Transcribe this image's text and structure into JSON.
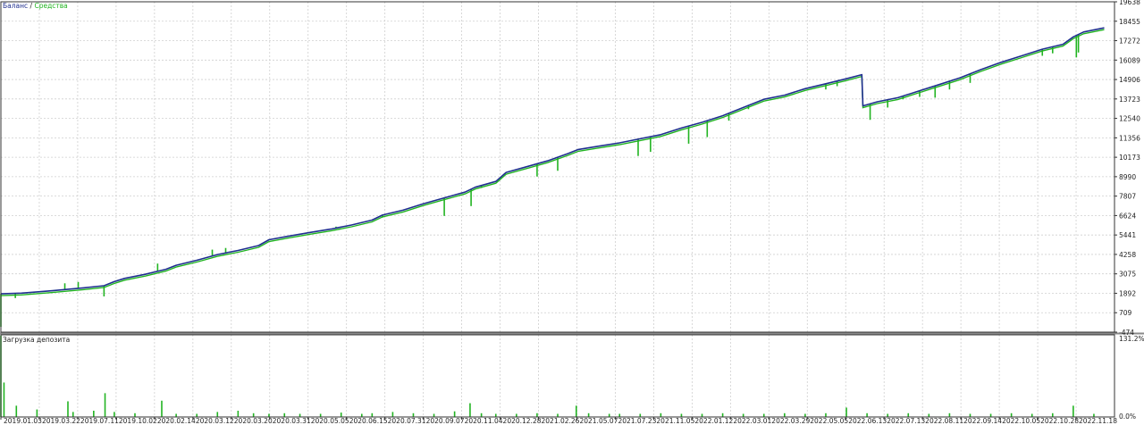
{
  "chart_data": {
    "type": "line",
    "colors": {
      "balance": "#1f2f8f",
      "equity": "#22b422",
      "grid": "#cfcfcf",
      "frame": "#333333",
      "separator": "#8a8a8a"
    },
    "legend": {
      "balance_label": "Баланс",
      "separator": " / ",
      "equity_label": "Средства"
    },
    "main": {
      "ylim": [
        -474,
        19638
      ],
      "y_ticks": [
        "19638",
        "18455",
        "17272",
        "16089",
        "14906",
        "13723",
        "12540",
        "11356",
        "10173",
        "8990",
        "7807",
        "6624",
        "5441",
        "4258",
        "3075",
        "1892",
        "709",
        "-474"
      ],
      "balance_points": [
        [
          0,
          1860
        ],
        [
          2,
          1900
        ],
        [
          5,
          2050
        ],
        [
          8,
          2220
        ],
        [
          10,
          2350
        ],
        [
          11,
          2600
        ],
        [
          12,
          2800
        ],
        [
          14,
          3050
        ],
        [
          16,
          3350
        ],
        [
          17,
          3600
        ],
        [
          19,
          3900
        ],
        [
          21,
          4250
        ],
        [
          23,
          4500
        ],
        [
          25,
          4800
        ],
        [
          26,
          5150
        ],
        [
          28,
          5380
        ],
        [
          30,
          5600
        ],
        [
          32,
          5800
        ],
        [
          34,
          6050
        ],
        [
          36,
          6350
        ],
        [
          37,
          6650
        ],
        [
          39,
          6950
        ],
        [
          41,
          7350
        ],
        [
          43,
          7700
        ],
        [
          45,
          8050
        ],
        [
          46,
          8350
        ],
        [
          48,
          8700
        ],
        [
          49,
          9250
        ],
        [
          51,
          9600
        ],
        [
          53,
          9950
        ],
        [
          55,
          10400
        ],
        [
          56,
          10650
        ],
        [
          58,
          10850
        ],
        [
          60,
          11050
        ],
        [
          62,
          11300
        ],
        [
          64,
          11550
        ],
        [
          66,
          11950
        ],
        [
          68,
          12300
        ],
        [
          70,
          12700
        ],
        [
          72,
          13200
        ],
        [
          74,
          13700
        ],
        [
          76,
          13950
        ],
        [
          78,
          14350
        ],
        [
          80,
          14650
        ],
        [
          82,
          14950
        ],
        [
          83.5,
          15200
        ],
        [
          83.6,
          13300
        ],
        [
          85,
          13550
        ],
        [
          87,
          13800
        ],
        [
          89,
          14200
        ],
        [
          91,
          14600
        ],
        [
          93,
          15000
        ],
        [
          95,
          15500
        ],
        [
          97,
          15950
        ],
        [
          99,
          16350
        ],
        [
          101,
          16750
        ],
        [
          103,
          17050
        ],
        [
          104,
          17500
        ],
        [
          105,
          17800
        ],
        [
          107,
          18050
        ]
      ],
      "equity_spikes": [
        [
          0,
          -150
        ],
        [
          1.4,
          1600
        ],
        [
          6.2,
          2500
        ],
        [
          7.5,
          2580
        ],
        [
          10,
          1700
        ],
        [
          15.2,
          3700
        ],
        [
          20.5,
          4550
        ],
        [
          21.8,
          4650
        ],
        [
          30.4,
          5600
        ],
        [
          32.5,
          5950
        ],
        [
          37,
          6500
        ],
        [
          43,
          6600
        ],
        [
          45.6,
          7200
        ],
        [
          46.6,
          8300
        ],
        [
          52,
          9000
        ],
        [
          54,
          9350
        ],
        [
          61.8,
          10250
        ],
        [
          63,
          10500
        ],
        [
          66.7,
          11000
        ],
        [
          68.5,
          11400
        ],
        [
          70.6,
          12400
        ],
        [
          72.5,
          13100
        ],
        [
          80,
          14300
        ],
        [
          81.1,
          14500
        ],
        [
          84.3,
          12450
        ],
        [
          86,
          13200
        ],
        [
          87.5,
          13700
        ],
        [
          89.1,
          13850
        ],
        [
          90.6,
          13800
        ],
        [
          92,
          14300
        ],
        [
          94,
          14700
        ],
        [
          101,
          16350
        ],
        [
          102,
          16500
        ],
        [
          104.3,
          16250
        ],
        [
          104.5,
          16550
        ]
      ]
    },
    "sub": {
      "label": "Загрузка депозита",
      "ylim": [
        0,
        131.2
      ],
      "y_ticks": [
        "131.2%",
        "0.0%"
      ],
      "bars": [
        [
          0,
          130
        ],
        [
          0.3,
          55
        ],
        [
          1.5,
          18
        ],
        [
          3.5,
          12
        ],
        [
          6.5,
          25
        ],
        [
          7,
          8
        ],
        [
          9,
          10
        ],
        [
          10.1,
          38
        ],
        [
          11,
          8
        ],
        [
          13,
          6
        ],
        [
          15.6,
          26
        ],
        [
          17,
          5
        ],
        [
          19,
          5
        ],
        [
          21,
          8
        ],
        [
          23,
          10
        ],
        [
          24.5,
          6
        ],
        [
          26,
          5
        ],
        [
          27.5,
          6
        ],
        [
          29,
          5
        ],
        [
          31,
          5
        ],
        [
          33,
          7
        ],
        [
          35,
          5
        ],
        [
          36,
          6
        ],
        [
          38,
          8
        ],
        [
          40,
          6
        ],
        [
          42,
          5
        ],
        [
          44,
          9
        ],
        [
          45.5,
          22
        ],
        [
          46.6,
          6
        ],
        [
          48,
          5
        ],
        [
          50,
          5
        ],
        [
          52,
          6
        ],
        [
          54,
          5
        ],
        [
          55.8,
          18
        ],
        [
          57,
          6
        ],
        [
          59,
          5
        ],
        [
          60,
          5
        ],
        [
          62,
          5
        ],
        [
          64,
          6
        ],
        [
          66,
          5
        ],
        [
          68,
          5
        ],
        [
          70,
          6
        ],
        [
          72,
          5
        ],
        [
          74,
          5
        ],
        [
          76,
          6
        ],
        [
          78,
          5
        ],
        [
          80,
          6
        ],
        [
          82,
          15
        ],
        [
          84,
          6
        ],
        [
          86,
          5
        ],
        [
          88,
          6
        ],
        [
          90,
          5
        ],
        [
          92,
          6
        ],
        [
          94,
          5
        ],
        [
          96,
          5
        ],
        [
          98,
          6
        ],
        [
          100,
          5
        ],
        [
          102,
          6
        ],
        [
          104,
          18
        ],
        [
          106,
          5
        ]
      ]
    },
    "x_ticks": [
      "2019.01.03",
      "2019.03.22",
      "2019.07.11",
      "2019.10.02",
      "2020.02.14",
      "2020.03.12",
      "2020.03.20",
      "2020.03.31",
      "2020.05.05",
      "2020.06.15",
      "2020.07.31",
      "2020.09.07",
      "2020.11.04",
      "2020.12.28",
      "2021.02.26",
      "2021.05.07",
      "2021.07.23",
      "2021.11.05",
      "2022.01.12",
      "2022.03.01",
      "2022.03.29",
      "2022.05.05",
      "2022.06.13",
      "2022.07.13",
      "2022.08.11",
      "2022.09.14",
      "2022.10.05",
      "2022.10.28",
      "2022.11.18"
    ]
  }
}
